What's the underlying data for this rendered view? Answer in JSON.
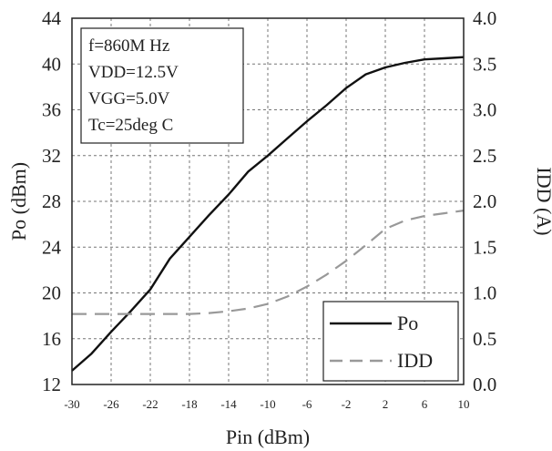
{
  "chart_data": {
    "type": "line",
    "xlabel": "Pin (dBm)",
    "ylabel": "Po (dBm)",
    "y2label": "IDD (A)",
    "xlim": [
      -30,
      10
    ],
    "ylim": [
      12,
      44
    ],
    "y2lim": [
      0.0,
      4.0
    ],
    "xticks": [
      "-30",
      "-26",
      "-22",
      "-18",
      "-14",
      "-10",
      "-6",
      "-2",
      "2",
      "6",
      "10"
    ],
    "yticks": [
      "12",
      "16",
      "20",
      "24",
      "28",
      "32",
      "36",
      "40",
      "44"
    ],
    "y2ticks": [
      "0.0",
      "0.5",
      "1.0",
      "1.5",
      "2.0",
      "2.5",
      "3.0",
      "3.5",
      "4.0"
    ],
    "grid": true,
    "legend_position": "bottom-right",
    "annotation_lines": [
      "f=860M Hz",
      "VDD=12.5V",
      "VGG=5.0V",
      "Tc=25deg C"
    ],
    "series": [
      {
        "name": "Po",
        "axis": "left",
        "style": "solid",
        "color": "#111111",
        "x": [
          -30,
          -28,
          -26,
          -24,
          -22,
          -20,
          -18,
          -16,
          -14,
          -12,
          -10,
          -8,
          -6,
          -4,
          -2,
          0,
          2,
          4,
          6,
          8,
          10
        ],
        "y": [
          13.2,
          14.7,
          16.6,
          18.4,
          20.3,
          23.0,
          24.9,
          26.8,
          28.6,
          30.6,
          32.0,
          33.5,
          35.0,
          36.4,
          37.9,
          39.1,
          39.7,
          40.1,
          40.4,
          40.5,
          40.6
        ]
      },
      {
        "name": "IDD",
        "axis": "right",
        "style": "dashed",
        "color": "#999999",
        "x": [
          -30,
          -26,
          -22,
          -18,
          -16,
          -14,
          -12,
          -10,
          -8,
          -6,
          -4,
          -2,
          0,
          2,
          4,
          6,
          8,
          10
        ],
        "y": [
          0.77,
          0.77,
          0.77,
          0.77,
          0.78,
          0.8,
          0.83,
          0.88,
          0.96,
          1.07,
          1.2,
          1.35,
          1.52,
          1.7,
          1.79,
          1.84,
          1.87,
          1.9
        ]
      }
    ]
  }
}
